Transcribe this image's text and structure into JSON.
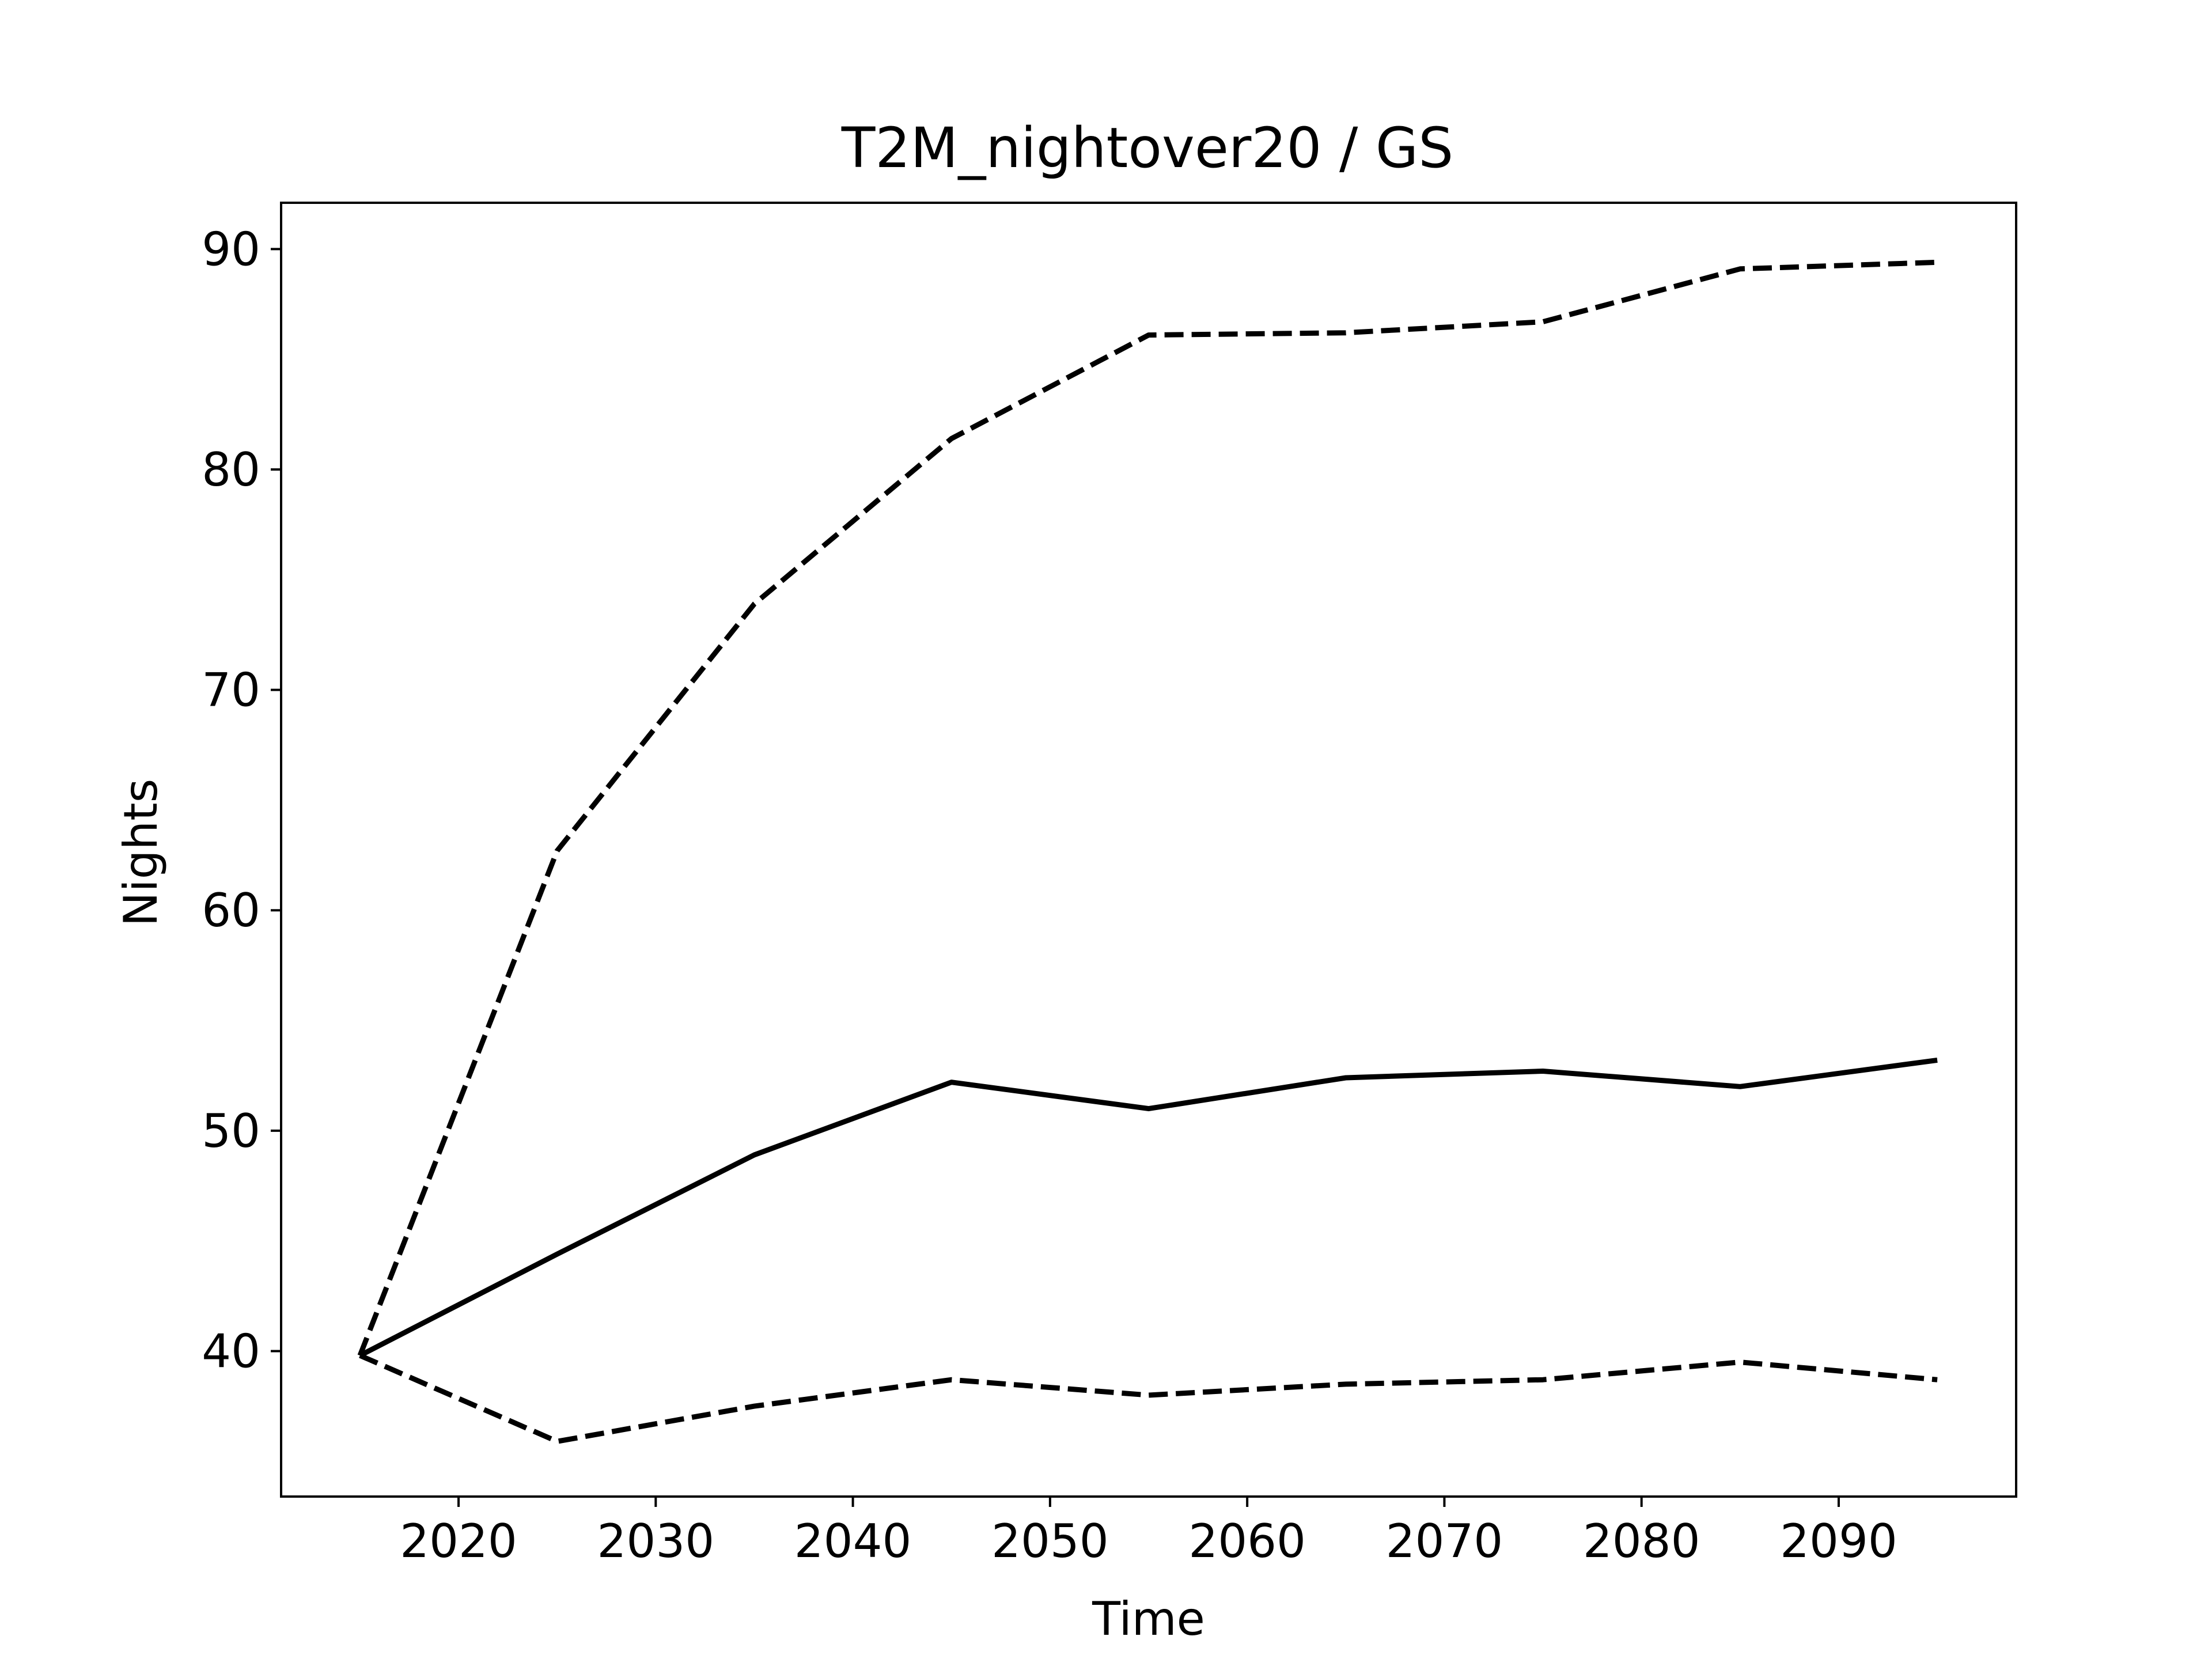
{
  "chart_data": {
    "type": "line",
    "title": "T2M_nightover20 / GS",
    "xlabel": "Time",
    "ylabel": "Nights",
    "x": [
      2015,
      2025,
      2035,
      2045,
      2055,
      2065,
      2075,
      2085,
      2095
    ],
    "xlim": [
      2011,
      2099
    ],
    "ylim": [
      33.4,
      92.1
    ],
    "xticks": [
      2020,
      2030,
      2040,
      2050,
      2060,
      2070,
      2080,
      2090
    ],
    "yticks": [
      40,
      50,
      60,
      70,
      80,
      90
    ],
    "grid": false,
    "legend": "none",
    "colors": {
      "line": "#000000",
      "background": "#ffffff"
    },
    "series": [
      {
        "style": "dashed",
        "values": [
          39.8,
          62.7,
          73.9,
          81.4,
          86.1,
          86.2,
          86.7,
          89.1,
          89.4
        ]
      },
      {
        "style": "solid",
        "values": [
          39.8,
          44.4,
          48.9,
          52.2,
          51.0,
          52.4,
          52.7,
          52.0,
          53.2
        ]
      },
      {
        "style": "dashed",
        "values": [
          39.8,
          35.9,
          37.5,
          38.7,
          38.0,
          38.5,
          38.7,
          39.5,
          38.7
        ]
      }
    ]
  }
}
